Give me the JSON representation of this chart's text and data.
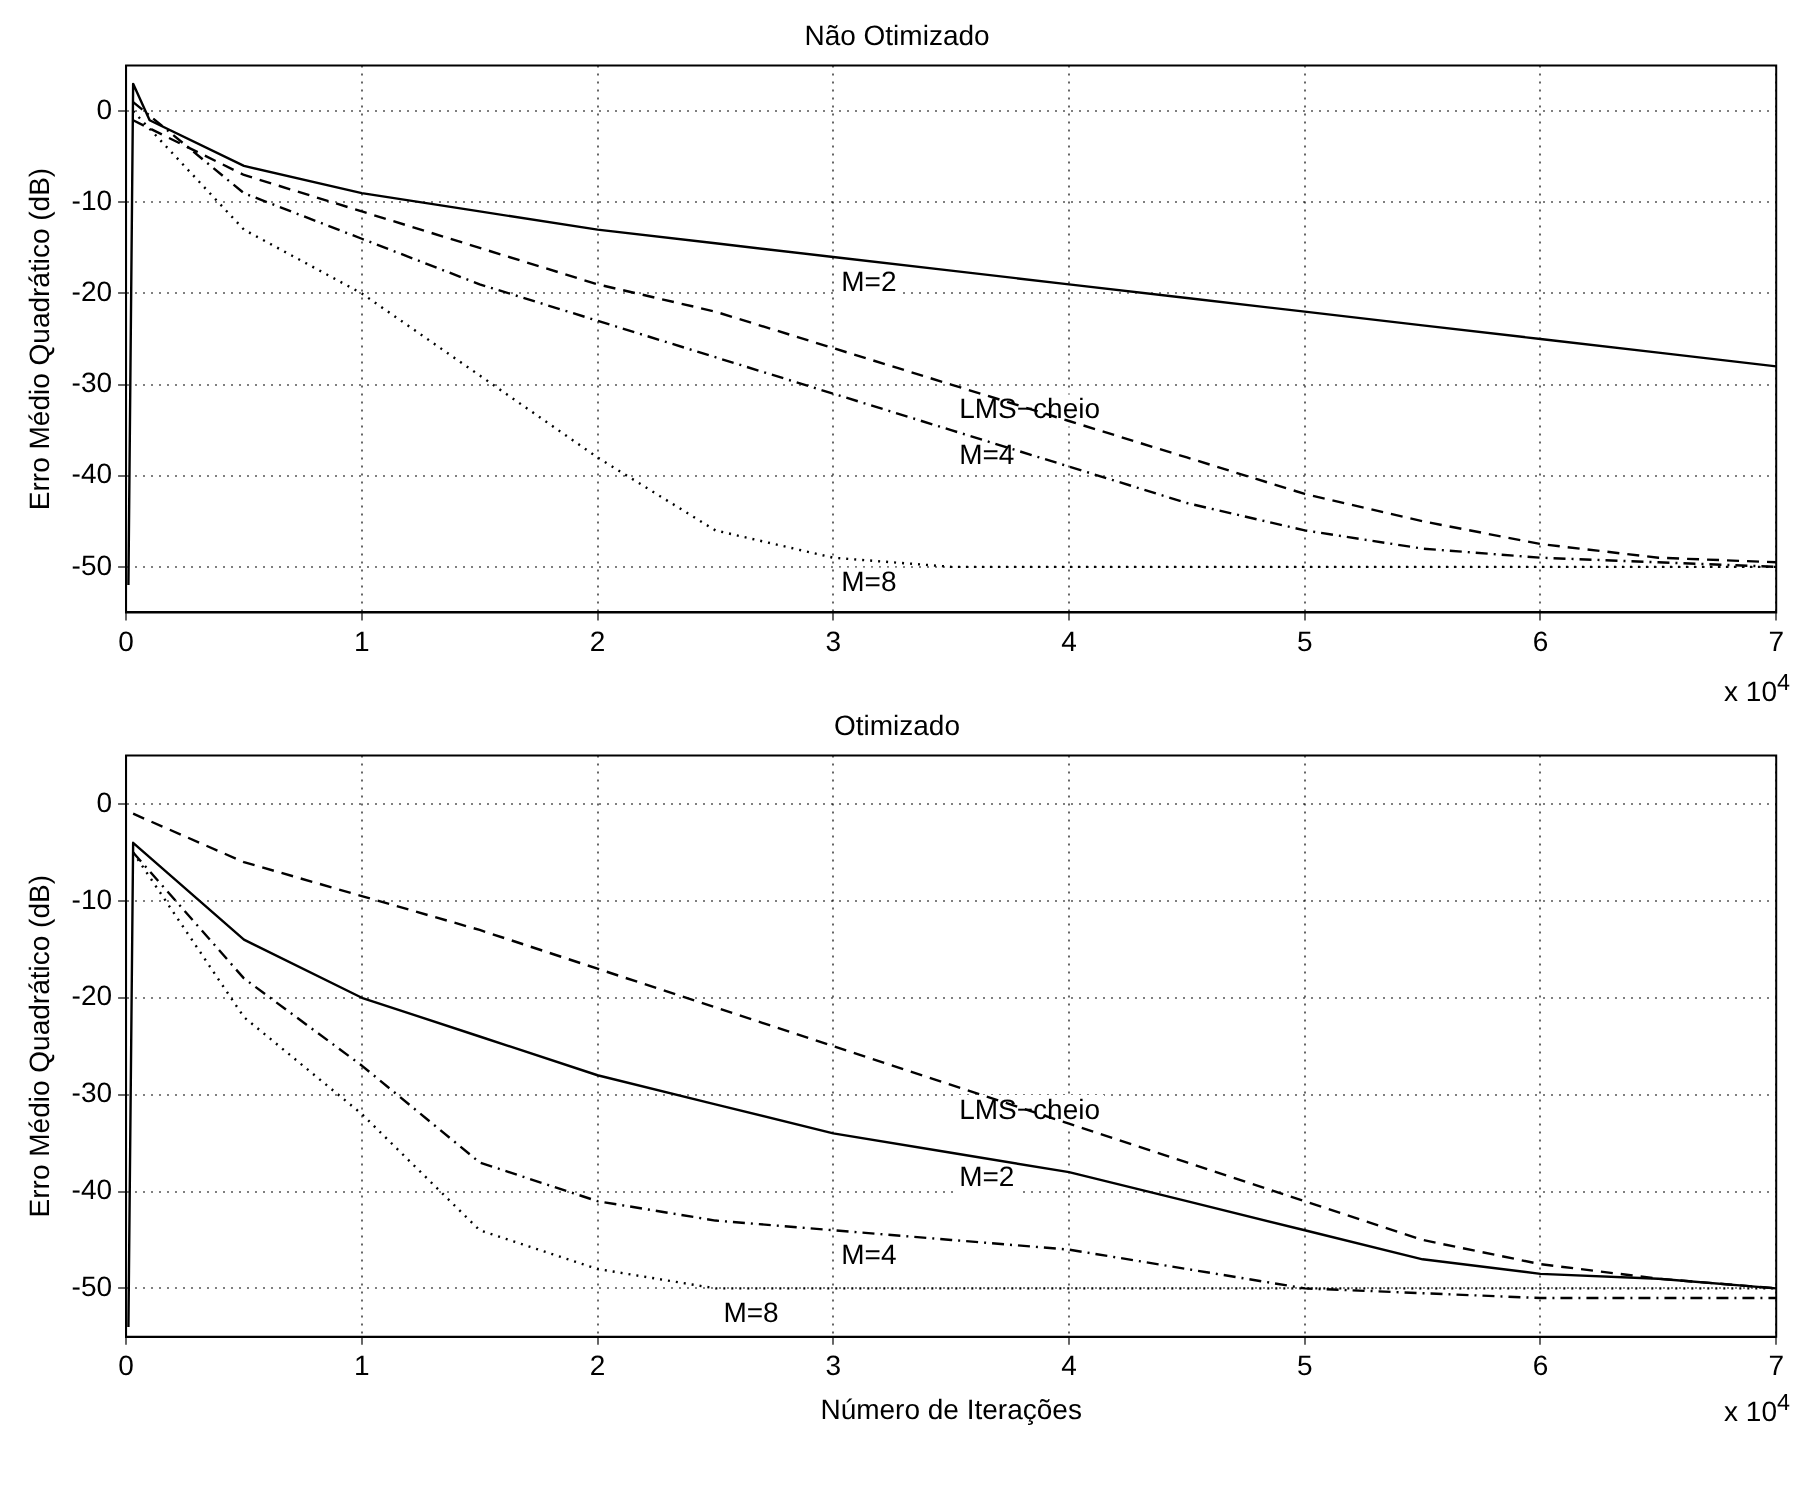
{
  "chart_data": [
    {
      "type": "line",
      "title": "Não Otimizado",
      "ylabel": "Erro Médio Quadrático (dB)",
      "xlim": [
        0,
        7
      ],
      "xticks": [
        0,
        1,
        2,
        3,
        4,
        5,
        6,
        7
      ],
      "ylim": [
        -55,
        5
      ],
      "yticks": [
        -50,
        -40,
        -30,
        -20,
        -10,
        0
      ],
      "grid": true,
      "legend": false,
      "annotations": [
        "x 10$^{4}$"
      ],
      "series": [
        {
          "name": "M=2",
          "color": "#000000",
          "line_style": "solid",
          "x": [
            0.01,
            0.03,
            0.1,
            0.5,
            1,
            1.5,
            2,
            2.5,
            3,
            3.5,
            4,
            4.5,
            5,
            5.5,
            6,
            6.5,
            7
          ],
          "values": [
            -52,
            3,
            -1,
            -6,
            -9,
            -11,
            -13,
            -14.5,
            -16,
            -17.5,
            -19,
            -20.5,
            -22,
            -23.5,
            -25,
            -26.5,
            -28
          ]
        },
        {
          "name": "LMS−cheio",
          "color": "#000000",
          "line_style": "dashed",
          "x": [
            0.03,
            0.5,
            1,
            1.5,
            2,
            2.5,
            3,
            3.5,
            4,
            4.5,
            5,
            5.5,
            6,
            6.5,
            7
          ],
          "values": [
            -1,
            -7,
            -11,
            -15,
            -19,
            -22,
            -26,
            -30,
            -34,
            -38,
            -42,
            -45,
            -47.5,
            -49,
            -49.5
          ]
        },
        {
          "name": "M=4",
          "color": "#000000",
          "line_style": "dashdot",
          "x": [
            0.03,
            0.5,
            1,
            1.5,
            2,
            2.5,
            3,
            3.5,
            4,
            4.5,
            5,
            5.5,
            6,
            6.5,
            7
          ],
          "values": [
            1,
            -9,
            -14,
            -19,
            -23,
            -27,
            -31,
            -35,
            -39,
            -43,
            -46,
            -48,
            -49,
            -49.5,
            -50
          ]
        },
        {
          "name": "M=8",
          "color": "#000000",
          "line_style": "dotted",
          "x": [
            0.03,
            0.5,
            1,
            1.5,
            2,
            2.5,
            3,
            3.5,
            4,
            5,
            6,
            7
          ],
          "values": [
            0,
            -13,
            -20,
            -29,
            -38,
            -46,
            -49,
            -50,
            -50,
            -50,
            -50,
            -50
          ]
        }
      ]
    },
    {
      "type": "line",
      "title": "Otimizado",
      "ylabel": "Erro Médio Quadrático (dB)",
      "xlabel": "Número de Iterações",
      "xlim": [
        0,
        7
      ],
      "xticks": [
        0,
        1,
        2,
        3,
        4,
        5,
        6,
        7
      ],
      "ylim": [
        -55,
        5
      ],
      "yticks": [
        -50,
        -40,
        -30,
        -20,
        -10,
        0
      ],
      "grid": true,
      "legend": false,
      "annotations": [
        "x 10$^{4}$"
      ],
      "series": [
        {
          "name": "LMS−cheio",
          "color": "#000000",
          "line_style": "dashed",
          "x": [
            0.03,
            0.5,
            1,
            1.5,
            2,
            2.5,
            3,
            3.5,
            4,
            4.5,
            5,
            5.5,
            6,
            6.5,
            7
          ],
          "values": [
            -1,
            -6,
            -9.5,
            -13,
            -17,
            -21,
            -25,
            -29,
            -33,
            -37,
            -41,
            -45,
            -47.5,
            -49,
            -50
          ]
        },
        {
          "name": "M=2",
          "color": "#000000",
          "line_style": "solid",
          "x": [
            0.01,
            0.03,
            0.5,
            1,
            1.5,
            2,
            2.5,
            3,
            3.5,
            4,
            4.5,
            5,
            5.5,
            6,
            6.5,
            7
          ],
          "values": [
            -54,
            -4,
            -14,
            -20,
            -24,
            -28,
            -31,
            -34,
            -36,
            -38,
            -41,
            -44,
            -47,
            -48.5,
            -49,
            -50
          ]
        },
        {
          "name": "M=4",
          "color": "#000000",
          "line_style": "dashdot",
          "x": [
            0.03,
            0.5,
            1,
            1.5,
            2,
            2.5,
            3,
            3.5,
            4,
            4.5,
            5,
            6,
            7
          ],
          "values": [
            -5,
            -18,
            -27,
            -37,
            -41,
            -43,
            -44,
            -45,
            -46,
            -48,
            -50,
            -51,
            -51
          ]
        },
        {
          "name": "M=8",
          "color": "#000000",
          "line_style": "dotted",
          "x": [
            0.03,
            0.5,
            1,
            1.5,
            2,
            2.5,
            3,
            4,
            5,
            6,
            7
          ],
          "values": [
            -5,
            -22,
            -32,
            -44,
            -48,
            -50,
            -50,
            -50,
            -50,
            -50,
            -50
          ]
        }
      ]
    }
  ]
}
